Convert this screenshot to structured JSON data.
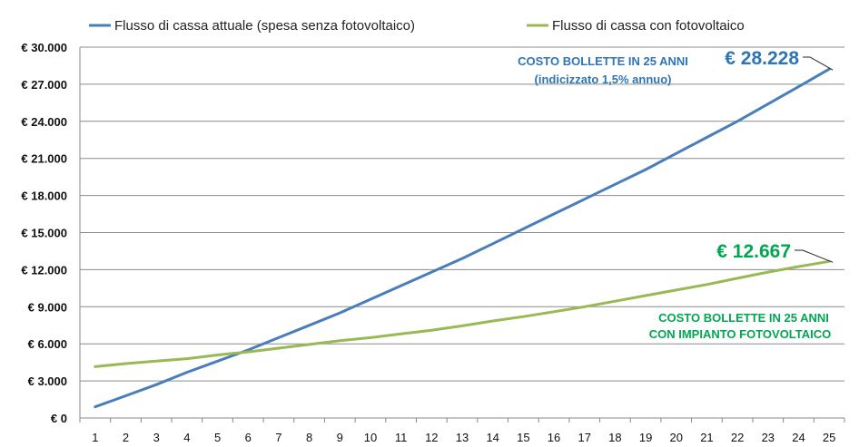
{
  "chart_data": {
    "type": "line",
    "x": [
      1,
      2,
      3,
      4,
      5,
      6,
      7,
      8,
      9,
      10,
      11,
      12,
      13,
      14,
      15,
      16,
      17,
      18,
      19,
      20,
      21,
      22,
      23,
      24,
      25
    ],
    "categories": [
      "1",
      "2",
      "3",
      "4",
      "5",
      "6",
      "7",
      "8",
      "9",
      "10",
      "11",
      "12",
      "13",
      "14",
      "15",
      "16",
      "17",
      "18",
      "19",
      "20",
      "21",
      "22",
      "23",
      "24",
      "25"
    ],
    "ylim": [
      0,
      30000
    ],
    "yticks": [
      0,
      3000,
      6000,
      9000,
      12000,
      15000,
      18000,
      21000,
      24000,
      27000,
      30000
    ],
    "ytick_labels": [
      "€ 0",
      "€ 3.000",
      "€ 6.000",
      "€ 9.000",
      "€ 12.000",
      "€ 15.000",
      "€ 18.000",
      "€ 21.000",
      "€ 24.000",
      "€ 27.000",
      "€ 30.000"
    ],
    "grid": true,
    "legend_position": "top",
    "series": [
      {
        "name": "Flusso di cassa attuale (spesa senza fotovoltaico)",
        "color": "#4a7ebb",
        "values": [
          900,
          1800,
          2700,
          3700,
          4600,
          5500,
          6500,
          7500,
          8500,
          9600,
          10700,
          11800,
          12900,
          14100,
          15300,
          16500,
          17700,
          18900,
          20100,
          21400,
          22700,
          24000,
          25400,
          26800,
          28228
        ]
      },
      {
        "name": "Flusso di cassa con fotovoltaico",
        "color": "#98b954",
        "values": [
          4150,
          4400,
          4600,
          4800,
          5100,
          5350,
          5650,
          5950,
          6250,
          6500,
          6800,
          7100,
          7450,
          7850,
          8200,
          8600,
          9000,
          9450,
          9900,
          10350,
          10800,
          11300,
          11800,
          12250,
          12667
        ]
      }
    ],
    "annotations": [
      {
        "id": "blue_title_1",
        "text": "COSTO BOLLETTE IN 25 ANNI",
        "color": "#2e75b6"
      },
      {
        "id": "blue_title_2",
        "text": "(indicizzato 1,5% annuo)",
        "color": "#2e75b6"
      },
      {
        "id": "blue_value",
        "text": "€ 28.228",
        "color": "#2e75b6"
      },
      {
        "id": "green_title_1",
        "text": "COSTO BOLLETTE IN 25 ANNI",
        "color": "#00a651"
      },
      {
        "id": "green_title_2",
        "text": "CON IMPIANTO FOTOVOLTAICO",
        "color": "#00a651"
      },
      {
        "id": "green_value",
        "text": "€ 12.667",
        "color": "#00a651"
      }
    ]
  }
}
